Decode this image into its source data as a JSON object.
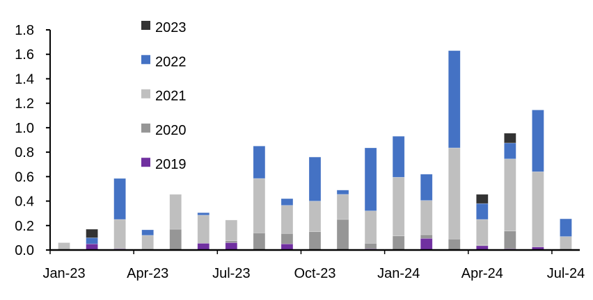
{
  "chart_data": {
    "type": "bar",
    "stacked": true,
    "title": "",
    "xlabel": "",
    "ylabel": "",
    "ylim": [
      0,
      1.8
    ],
    "yticks": [
      "0.0",
      "0.2",
      "0.4",
      "0.6",
      "0.8",
      "1.0",
      "1.2",
      "1.4",
      "1.6",
      "1.8"
    ],
    "categories": [
      "Jan-23",
      "Feb-23",
      "Mar-23",
      "Apr-23",
      "May-23",
      "Jun-23",
      "Jul-23",
      "Aug-23",
      "Sep-23",
      "Oct-23",
      "Nov-23",
      "Dec-23",
      "Jan-24",
      "Feb-24",
      "Mar-24",
      "Apr-24",
      "May-24",
      "Jun-24",
      "Jul-24"
    ],
    "xtick_labels": [
      "Jan-23",
      "Apr-23",
      "Jul-23",
      "Oct-23",
      "Jan-24",
      "Apr-24",
      "Jul-24"
    ],
    "legend_position": "top-left",
    "series": [
      {
        "name": "2019",
        "color": "#7030A0",
        "values": [
          0,
          0.05,
          0.01,
          0,
          0,
          0.055,
          0.06,
          0,
          0.05,
          0,
          0,
          0.01,
          0,
          0.095,
          0,
          0.035,
          0.01,
          0.025,
          0
        ]
      },
      {
        "name": "2020",
        "color": "#969696",
        "values": [
          0,
          0,
          0,
          0,
          0.17,
          0,
          0.015,
          0.14,
          0.085,
          0.15,
          0.25,
          0.045,
          0.115,
          0.03,
          0.09,
          0.005,
          0.145,
          0,
          0
        ]
      },
      {
        "name": "2021",
        "color": "#BFBFBF",
        "values": [
          0.06,
          0,
          0.24,
          0.12,
          0.285,
          0.23,
          0.17,
          0.445,
          0.23,
          0.25,
          0.205,
          0.265,
          0.48,
          0.28,
          0.745,
          0.21,
          0.59,
          0.615,
          0.11
        ]
      },
      {
        "name": "2022",
        "color": "#4472C4",
        "values": [
          0,
          0.05,
          0.335,
          0.045,
          0,
          0.02,
          0,
          0.265,
          0.055,
          0.36,
          0.035,
          0.515,
          0.335,
          0.215,
          0.795,
          0.13,
          0.13,
          0.505,
          0.145
        ]
      },
      {
        "name": "2023",
        "color": "#333333",
        "values": [
          0,
          0.07,
          0,
          0,
          0,
          0,
          0,
          0,
          0,
          0,
          0,
          0,
          0,
          0,
          0,
          0.075,
          0.08,
          0,
          0
        ]
      }
    ],
    "legend_order": [
      "2023",
      "2022",
      "2021",
      "2020",
      "2019"
    ]
  }
}
